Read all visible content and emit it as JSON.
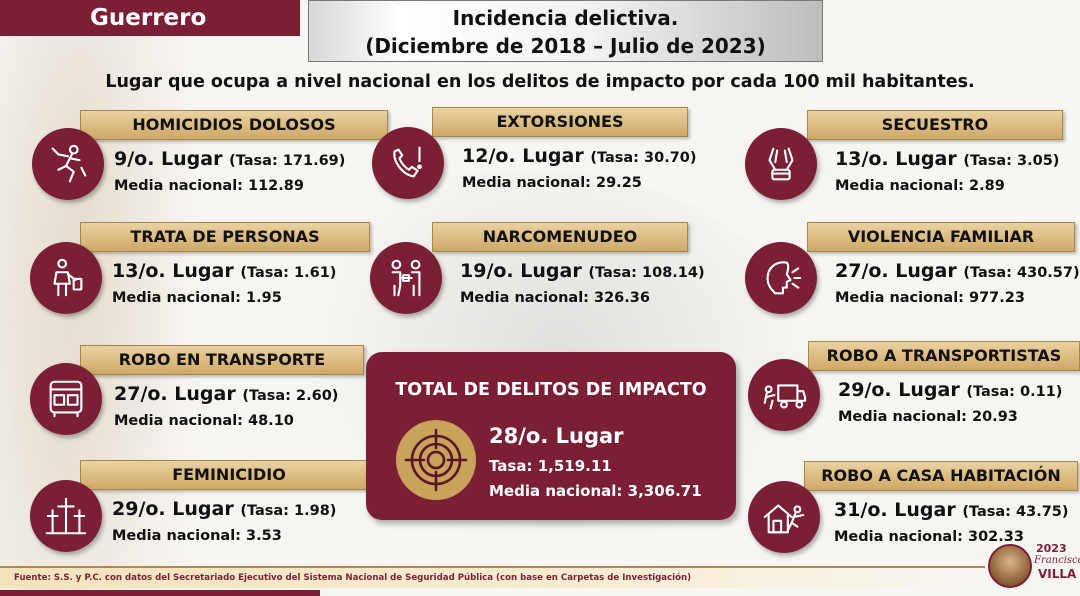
{
  "header": {
    "state": "Guerrero",
    "title_line1": "Incidencia delictiva.",
    "title_line2": "(Diciembre de 2018 – Julio de 2023)",
    "subtitle": "Lugar que ocupa a nivel nacional en los delitos de impacto por cada 100 mil habitantes."
  },
  "crimes": [
    {
      "key": "homicidios",
      "title": "HOMICIDIOS DOLOSOS",
      "rank": "9/o. Lugar",
      "tasa": "(Tasa: 171.69)",
      "media": "Media nacional: 112.89",
      "icon": "running-victim-icon"
    },
    {
      "key": "extorsiones",
      "title": "EXTORSIONES",
      "rank": "12/o. Lugar",
      "tasa": "(Tasa: 30.70)",
      "media": "Media nacional: 29.25",
      "icon": "phone-alert-icon"
    },
    {
      "key": "secuestro",
      "title": "SECUESTRO",
      "rank": "13/o. Lugar",
      "tasa": "(Tasa: 3.05)",
      "media": "Media nacional: 2.89",
      "icon": "bound-hands-icon"
    },
    {
      "key": "trata",
      "title": "TRATA DE PERSONAS",
      "rank": "13/o. Lugar",
      "tasa": "(Tasa: 1.61)",
      "media": "Media nacional: 1.95",
      "icon": "person-tag-icon"
    },
    {
      "key": "narcomenudeo",
      "title": "NARCOMENUDEO",
      "rank": "19/o. Lugar",
      "tasa": "(Tasa: 108.14)",
      "media": "Media nacional: 326.36",
      "icon": "exchange-people-icon"
    },
    {
      "key": "violencia",
      "title": "VIOLENCIA FAMILIAR",
      "rank": "27/o. Lugar",
      "tasa": "(Tasa: 430.57)",
      "media": "Media nacional: 977.23",
      "icon": "screaming-face-icon"
    },
    {
      "key": "transporte",
      "title": "ROBO EN TRANSPORTE",
      "rank": "27/o. Lugar",
      "tasa": "(Tasa: 2.60)",
      "media": "Media nacional: 48.10",
      "icon": "bus-icon"
    },
    {
      "key": "transportistas",
      "title": "ROBO A TRANSPORTISTAS",
      "rank": "29/o. Lugar",
      "tasa": "(Tasa: 0.11)",
      "media": "Media nacional: 20.93",
      "icon": "truck-icon"
    },
    {
      "key": "feminicidio",
      "title": "FEMINICIDIO",
      "rank": "29/o. Lugar",
      "tasa": "(Tasa: 1.98)",
      "media": "Media nacional: 3.53",
      "icon": "crosses-icon"
    },
    {
      "key": "casa",
      "title": "ROBO A CASA HABITACIÓN",
      "rank": "31/o. Lugar",
      "tasa": "(Tasa: 43.75)",
      "media": "Media nacional:  302.33",
      "icon": "house-thief-icon"
    }
  ],
  "total": {
    "title": "TOTAL DE DELITOS DE IMPACTO",
    "rank": "28/o. Lugar",
    "tasa": "Tasa: 1,519.11",
    "media": "Media nacional: 3,306.71",
    "icon": "target-icon"
  },
  "footer": {
    "source": "Fuente: S.S. y P.C. con datos del Secretariado Ejecutivo del Sistema Nacional de Seguridad Pública (con base en Carpetas de Investigación)"
  },
  "logo": {
    "year": "2023",
    "name1": "Francisco",
    "name2": "VILLA"
  },
  "colors": {
    "brand": "#7b1f35",
    "gold": "#cfa867"
  }
}
